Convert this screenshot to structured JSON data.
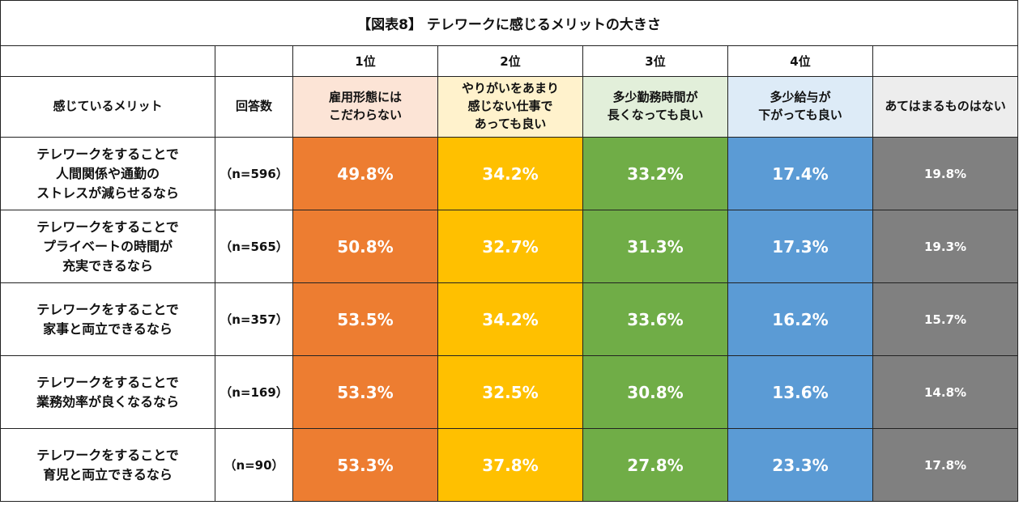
{
  "title": "【図表8】 テレワークに感じるメリットの大きさ",
  "ranks": [
    "1位",
    "2位",
    "3位",
    "4位"
  ],
  "headers": {
    "merit": "感じているメリット",
    "n": "回答数",
    "columns": [
      "雇用形態には\nこだわらない",
      "やりがいをあまり\n感じない仕事で\nあっても良い",
      "多少勤務時間が\n長くなっても良い",
      "多少給与が\n下がっても良い",
      "あてはまるものはない"
    ]
  },
  "colors": {
    "header_bg": [
      "#FCE4D6",
      "#FFF2CC",
      "#E2EFDA",
      "#DDEBF7",
      "#EDEDED"
    ],
    "cell_bg": [
      "#ED7D31",
      "#FFC000",
      "#70AD47",
      "#5B9BD5",
      "#808080"
    ]
  },
  "rows": [
    {
      "label": "テレワークをすることで\n人間関係や通勤の\nストレスが減らせるなら",
      "n": "（n=596）",
      "values": [
        "49.8%",
        "34.2%",
        "33.2%",
        "17.4%",
        "19.8%"
      ]
    },
    {
      "label": "テレワークをすることで\nプライベートの時間が\n充実できるなら",
      "n": "（n=565）",
      "values": [
        "50.8%",
        "32.7%",
        "31.3%",
        "17.3%",
        "19.3%"
      ]
    },
    {
      "label": "テレワークをすることで\n家事と両立できるなら",
      "n": "（n=357）",
      "values": [
        "53.5%",
        "34.2%",
        "33.6%",
        "16.2%",
        "15.7%"
      ]
    },
    {
      "label": "テレワークをすることで\n業務効率が良くなるなら",
      "n": "（n=169）",
      "values": [
        "53.3%",
        "32.5%",
        "30.8%",
        "13.6%",
        "14.8%"
      ]
    },
    {
      "label": "テレワークをすることで\n育児と両立できるなら",
      "n": "（n=90）",
      "values": [
        "53.3%",
        "37.8%",
        "27.8%",
        "23.3%",
        "17.8%"
      ]
    }
  ],
  "chart_data": {
    "type": "table",
    "title": "【図表8】 テレワークに感じるメリットの大きさ",
    "columns": [
      "雇用形態にはこだわらない",
      "やりがいをあまり感じない仕事であっても良い",
      "多少勤務時間が長くなっても良い",
      "多少給与が下がっても良い",
      "あてはまるものはない"
    ],
    "series": [
      {
        "name": "テレワークをすることで人間関係や通勤のストレスが減らせるなら",
        "n": 596,
        "values": [
          49.8,
          34.2,
          33.2,
          17.4,
          19.8
        ]
      },
      {
        "name": "テレワークをすることでプライベートの時間が充実できるなら",
        "n": 565,
        "values": [
          50.8,
          32.7,
          31.3,
          17.3,
          19.3
        ]
      },
      {
        "name": "テレワークをすることで家事と両立できるなら",
        "n": 357,
        "values": [
          53.5,
          34.2,
          33.6,
          16.2,
          15.7
        ]
      },
      {
        "name": "テレワークをすることで業務効率が良くなるなら",
        "n": 169,
        "values": [
          53.3,
          32.5,
          30.8,
          13.6,
          14.8
        ]
      },
      {
        "name": "テレワークをすることで育児と両立できるなら",
        "n": 90,
        "values": [
          53.3,
          37.8,
          27.8,
          23.3,
          17.8
        ]
      }
    ]
  }
}
